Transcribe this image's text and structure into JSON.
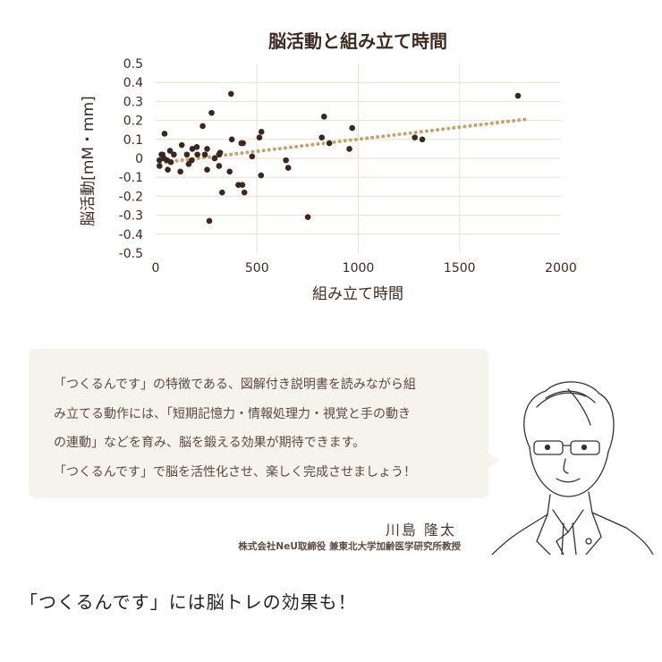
{
  "chart_data": {
    "type": "scatter",
    "title": "脳活動と組み立て時間",
    "xlabel": "組み立て時間",
    "ylabel": "脳活動[mM・mm]",
    "xlim": [
      0,
      2000
    ],
    "ylim": [
      -0.5,
      0.5
    ],
    "xticks": [
      "0",
      "500",
      "1000",
      "1500",
      "2000"
    ],
    "yticks": [
      "0.5",
      "0.4",
      "0.3",
      "0.2",
      "0.1",
      "0",
      "-0.1",
      "-0.2",
      "-0.3",
      "-0.4",
      "-0.5"
    ],
    "grid": true,
    "point_color": "#3b2620",
    "trend_color": "#c4a46a",
    "trendline": {
      "style": "dotted",
      "x": [
        50,
        1820
      ],
      "y": [
        -0.02,
        0.205
      ]
    },
    "points": [
      [
        19,
        -0.04
      ],
      [
        19,
        -0.01
      ],
      [
        29,
        0.02
      ],
      [
        34,
        0.02
      ],
      [
        44,
        0.13
      ],
      [
        41,
        0.0
      ],
      [
        56,
        -0.01
      ],
      [
        60,
        -0.06
      ],
      [
        71,
        0.04
      ],
      [
        75,
        -0.02
      ],
      [
        90,
        0.02
      ],
      [
        122,
        -0.07
      ],
      [
        129,
        0.07
      ],
      [
        154,
        0.02
      ],
      [
        163,
        -0.03
      ],
      [
        178,
        -0.01
      ],
      [
        181,
        0.05
      ],
      [
        203,
        0.06
      ],
      [
        206,
        0.02
      ],
      [
        232,
        0.17
      ],
      [
        243,
        0.02
      ],
      [
        254,
        -0.06
      ],
      [
        254,
        0.05
      ],
      [
        265,
        -0.33
      ],
      [
        276,
        0.24
      ],
      [
        291,
        0.0
      ],
      [
        313,
        0.02
      ],
      [
        318,
        0.03
      ],
      [
        313,
        -0.04
      ],
      [
        328,
        -0.18
      ],
      [
        365,
        -0.07
      ],
      [
        372,
        0.34
      ],
      [
        376,
        0.1
      ],
      [
        423,
        0.08
      ],
      [
        431,
        0.08
      ],
      [
        408,
        -0.14
      ],
      [
        428,
        -0.14
      ],
      [
        438,
        -0.18
      ],
      [
        476,
        0.01
      ],
      [
        512,
        0.11
      ],
      [
        522,
        0.14
      ],
      [
        520,
        -0.09
      ],
      [
        643,
        -0.01
      ],
      [
        654,
        -0.05
      ],
      [
        751,
        -0.31
      ],
      [
        820,
        0.11
      ],
      [
        831,
        0.22
      ],
      [
        857,
        0.08
      ],
      [
        956,
        0.05
      ],
      [
        970,
        0.16
      ],
      [
        1279,
        0.11
      ],
      [
        1316,
        0.1
      ],
      [
        1788,
        0.33
      ]
    ]
  },
  "comment": {
    "lines": [
      "「つくるんです」の特徴である、図解付き説明書を読みながら組",
      "み立てる動作には、「短期記憶力・情報処理力・視覚と手の動き",
      "の連動」などを育み、脳を鍛える効果が期待できます。",
      "「つくるんです」で脳を活性化させ、楽しく完成させましょう！"
    ],
    "name": "川島 隆太",
    "affiliation": "株式会社NeU取締役 兼東北大学加齢医学研究所教授"
  },
  "footer": {
    "headline": "「つくるんです」には脳トレの効果も！"
  }
}
